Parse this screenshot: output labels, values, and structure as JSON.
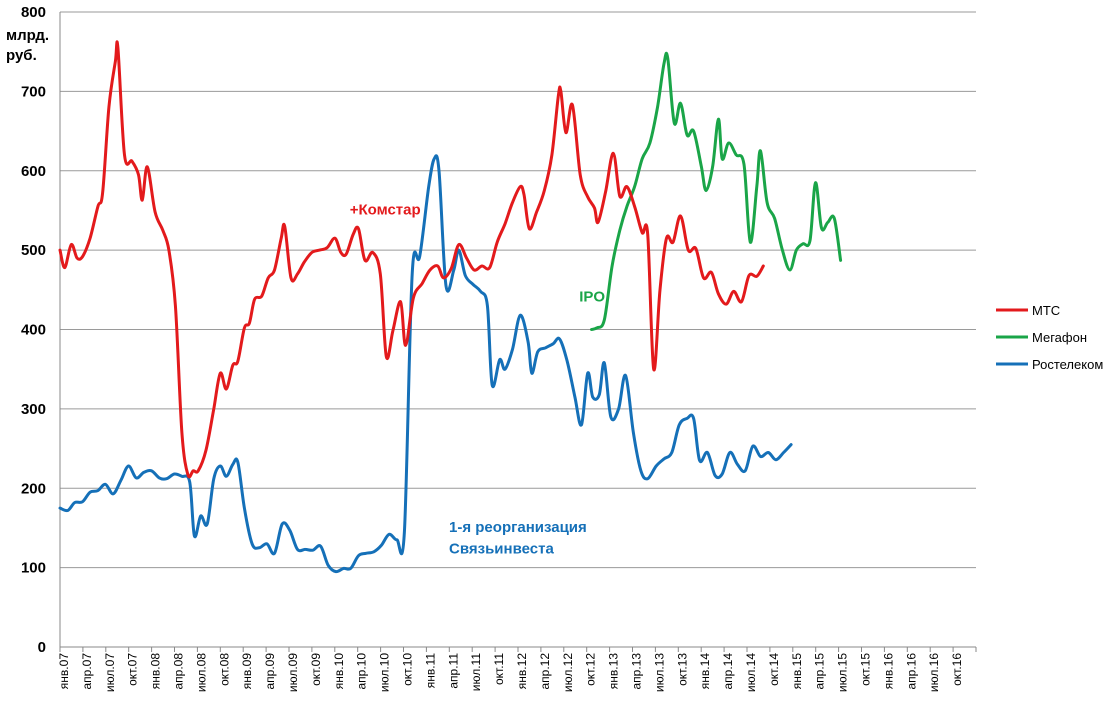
{
  "chart_data": {
    "type": "line",
    "ylim": [
      0,
      800
    ],
    "yticks": [
      0,
      100,
      200,
      300,
      400,
      500,
      600,
      700,
      800
    ],
    "yunit_lines": [
      "млрд.",
      "руб."
    ],
    "grid": "horizontal",
    "legend_position": "right",
    "x_ticks": [
      "янв.07",
      "апр.07",
      "июл.07",
      "окт.07",
      "янв.08",
      "апр.08",
      "июл.08",
      "окт.08",
      "янв.09",
      "апр.09",
      "июл.09",
      "окт.09",
      "янв.10",
      "апр.10",
      "июл.10",
      "окт.10",
      "янв.11",
      "апр.11",
      "июл.11",
      "окт.11",
      "янв.12",
      "апр.12",
      "июл.12",
      "окт.12",
      "янв.13",
      "апр.13",
      "июл.13",
      "окт.13",
      "янв.14",
      "апр.14",
      "июл.14",
      "окт.14",
      "янв.15",
      "апр.15",
      "июл.15",
      "окт.15",
      "янв.16",
      "апр.16",
      "июл.16",
      "окт.16"
    ],
    "annotations": [
      {
        "text": "+Комстар",
        "color": "#e31a1c",
        "x": "2010-03",
        "y": 545
      },
      {
        "text": "IPO",
        "color": "#1aa548",
        "x": "2012-09",
        "y": 435
      },
      {
        "text": "1-я реорганизация",
        "color": "#1570b8",
        "x": "2011-04",
        "y": 145
      },
      {
        "text": "Связьинвеста",
        "color": "#1570b8",
        "x": "2011-04",
        "y": 118
      }
    ],
    "series": [
      {
        "name": "МТС",
        "color": "#e31a1c",
        "points": [
          [
            "2007-01-01",
            500
          ],
          [
            "2007-01-20",
            478
          ],
          [
            "2007-02-15",
            507
          ],
          [
            "2007-03-10",
            490
          ],
          [
            "2007-04-01",
            492
          ],
          [
            "2007-05-01",
            515
          ],
          [
            "2007-06-01",
            555
          ],
          [
            "2007-06-20",
            572
          ],
          [
            "2007-07-15",
            680
          ],
          [
            "2007-08-10",
            738
          ],
          [
            "2007-08-20",
            755
          ],
          [
            "2007-09-15",
            620
          ],
          [
            "2007-10-15",
            612
          ],
          [
            "2007-11-10",
            595
          ],
          [
            "2007-11-25",
            563
          ],
          [
            "2007-12-15",
            605
          ],
          [
            "2008-01-15",
            548
          ],
          [
            "2008-02-15",
            525
          ],
          [
            "2008-03-10",
            500
          ],
          [
            "2008-04-05",
            430
          ],
          [
            "2008-05-01",
            270
          ],
          [
            "2008-05-25",
            217
          ],
          [
            "2008-06-15",
            222
          ],
          [
            "2008-07-05",
            222
          ],
          [
            "2008-08-05",
            248
          ],
          [
            "2008-09-05",
            300
          ],
          [
            "2008-10-01",
            345
          ],
          [
            "2008-10-25",
            325
          ],
          [
            "2008-11-20",
            355
          ],
          [
            "2008-12-10",
            360
          ],
          [
            "2009-01-05",
            402
          ],
          [
            "2009-01-25",
            408
          ],
          [
            "2009-02-15",
            438
          ],
          [
            "2009-03-15",
            442
          ],
          [
            "2009-04-10",
            465
          ],
          [
            "2009-05-05",
            475
          ],
          [
            "2009-06-01",
            515
          ],
          [
            "2009-06-15",
            530
          ],
          [
            "2009-07-10",
            465
          ],
          [
            "2009-08-05",
            470
          ],
          [
            "2009-09-01",
            485
          ],
          [
            "2009-10-01",
            497
          ],
          [
            "2009-11-01",
            500
          ],
          [
            "2009-12-01",
            503
          ],
          [
            "2010-01-01",
            515
          ],
          [
            "2010-01-25",
            497
          ],
          [
            "2010-02-15",
            495
          ],
          [
            "2010-03-15",
            520
          ],
          [
            "2010-04-05",
            527
          ],
          [
            "2010-05-01",
            487
          ],
          [
            "2010-06-01",
            497
          ],
          [
            "2010-07-01",
            470
          ],
          [
            "2010-07-25",
            366
          ],
          [
            "2010-08-20",
            398
          ],
          [
            "2010-09-20",
            435
          ],
          [
            "2010-10-10",
            380
          ],
          [
            "2010-11-10",
            440
          ],
          [
            "2010-12-15",
            458
          ],
          [
            "2011-01-15",
            475
          ],
          [
            "2011-02-15",
            480
          ],
          [
            "2011-03-10",
            465
          ],
          [
            "2011-04-10",
            477
          ],
          [
            "2011-05-10",
            507
          ],
          [
            "2011-06-10",
            490
          ],
          [
            "2011-07-10",
            475
          ],
          [
            "2011-08-10",
            480
          ],
          [
            "2011-09-10",
            478
          ],
          [
            "2011-10-10",
            510
          ],
          [
            "2011-11-10",
            533
          ],
          [
            "2011-12-10",
            560
          ],
          [
            "2012-01-10",
            580
          ],
          [
            "2012-01-25",
            570
          ],
          [
            "2012-02-15",
            527
          ],
          [
            "2012-03-15",
            548
          ],
          [
            "2012-04-15",
            575
          ],
          [
            "2012-05-15",
            620
          ],
          [
            "2012-06-10",
            695
          ],
          [
            "2012-06-20",
            700
          ],
          [
            "2012-07-10",
            648
          ],
          [
            "2012-08-05",
            683
          ],
          [
            "2012-09-05",
            595
          ],
          [
            "2012-10-05",
            567
          ],
          [
            "2012-11-01",
            553
          ],
          [
            "2012-11-15",
            535
          ],
          [
            "2012-12-15",
            573
          ],
          [
            "2013-01-15",
            622
          ],
          [
            "2013-02-10",
            568
          ],
          [
            "2013-03-10",
            580
          ],
          [
            "2013-04-10",
            555
          ],
          [
            "2013-05-10",
            522
          ],
          [
            "2013-06-01",
            520
          ],
          [
            "2013-06-25",
            350
          ],
          [
            "2013-07-20",
            450
          ],
          [
            "2013-08-15",
            515
          ],
          [
            "2013-09-10",
            510
          ],
          [
            "2013-10-10",
            543
          ],
          [
            "2013-11-10",
            500
          ],
          [
            "2013-12-10",
            502
          ],
          [
            "2014-01-10",
            465
          ],
          [
            "2014-02-10",
            472
          ],
          [
            "2014-03-10",
            445
          ],
          [
            "2014-04-10",
            432
          ],
          [
            "2014-05-10",
            448
          ],
          [
            "2014-06-10",
            435
          ],
          [
            "2014-07-10",
            468
          ],
          [
            "2014-08-10",
            467
          ],
          [
            "2014-09-05",
            480
          ]
        ]
      },
      {
        "name": "Мегафон",
        "color": "#1aa548",
        "points": [
          [
            "2012-10-20",
            400
          ],
          [
            "2012-11-10",
            402
          ],
          [
            "2012-12-10",
            412
          ],
          [
            "2013-01-10",
            480
          ],
          [
            "2013-02-10",
            525
          ],
          [
            "2013-03-10",
            555
          ],
          [
            "2013-04-10",
            580
          ],
          [
            "2013-05-10",
            615
          ],
          [
            "2013-06-10",
            635
          ],
          [
            "2013-07-10",
            680
          ],
          [
            "2013-08-05",
            735
          ],
          [
            "2013-08-20",
            742
          ],
          [
            "2013-09-15",
            660
          ],
          [
            "2013-10-10",
            685
          ],
          [
            "2013-11-05",
            645
          ],
          [
            "2013-12-01",
            650
          ],
          [
            "2014-01-01",
            605
          ],
          [
            "2014-01-20",
            575
          ],
          [
            "2014-02-15",
            605
          ],
          [
            "2014-03-10",
            665
          ],
          [
            "2014-03-25",
            615
          ],
          [
            "2014-04-20",
            635
          ],
          [
            "2014-05-20",
            620
          ],
          [
            "2014-06-20",
            608
          ],
          [
            "2014-07-15",
            510
          ],
          [
            "2014-08-10",
            580
          ],
          [
            "2014-08-25",
            625
          ],
          [
            "2014-09-20",
            560
          ],
          [
            "2014-10-20",
            540
          ],
          [
            "2014-11-20",
            500
          ],
          [
            "2014-12-20",
            475
          ],
          [
            "2015-01-15",
            500
          ],
          [
            "2015-02-10",
            508
          ],
          [
            "2015-03-10",
            512
          ],
          [
            "2015-04-01",
            585
          ],
          [
            "2015-04-25",
            528
          ],
          [
            "2015-05-20",
            535
          ],
          [
            "2015-06-15",
            540
          ],
          [
            "2015-07-10",
            487
          ]
        ]
      },
      {
        "name": "Ростелеком",
        "color": "#1570b8",
        "points": [
          [
            "2007-01-01",
            175
          ],
          [
            "2007-02-01",
            172
          ],
          [
            "2007-03-01",
            182
          ],
          [
            "2007-04-01",
            183
          ],
          [
            "2007-05-01",
            195
          ],
          [
            "2007-06-01",
            197
          ],
          [
            "2007-07-01",
            205
          ],
          [
            "2007-08-01",
            193
          ],
          [
            "2007-09-01",
            210
          ],
          [
            "2007-10-01",
            228
          ],
          [
            "2007-11-01",
            213
          ],
          [
            "2007-12-01",
            220
          ],
          [
            "2008-01-01",
            222
          ],
          [
            "2008-02-01",
            213
          ],
          [
            "2008-03-01",
            212
          ],
          [
            "2008-04-01",
            218
          ],
          [
            "2008-05-01",
            215
          ],
          [
            "2008-06-01",
            208
          ],
          [
            "2008-06-20",
            140
          ],
          [
            "2008-07-15",
            165
          ],
          [
            "2008-08-10",
            155
          ],
          [
            "2008-09-05",
            212
          ],
          [
            "2008-10-01",
            228
          ],
          [
            "2008-10-25",
            215
          ],
          [
            "2008-11-20",
            230
          ],
          [
            "2008-12-10",
            233
          ],
          [
            "2009-01-05",
            175
          ],
          [
            "2009-02-05",
            130
          ],
          [
            "2009-03-05",
            125
          ],
          [
            "2009-04-05",
            130
          ],
          [
            "2009-05-05",
            118
          ],
          [
            "2009-06-05",
            155
          ],
          [
            "2009-07-05",
            147
          ],
          [
            "2009-08-05",
            123
          ],
          [
            "2009-09-05",
            123
          ],
          [
            "2009-10-05",
            122
          ],
          [
            "2009-11-05",
            127
          ],
          [
            "2009-12-05",
            103
          ],
          [
            "2010-01-05",
            95
          ],
          [
            "2010-02-05",
            99
          ],
          [
            "2010-03-05",
            99
          ],
          [
            "2010-04-05",
            115
          ],
          [
            "2010-05-05",
            118
          ],
          [
            "2010-06-05",
            120
          ],
          [
            "2010-07-05",
            128
          ],
          [
            "2010-08-05",
            142
          ],
          [
            "2010-09-05",
            135
          ],
          [
            "2010-10-05",
            145
          ],
          [
            "2010-11-05",
            470
          ],
          [
            "2010-12-05",
            492
          ],
          [
            "2011-01-10",
            580
          ],
          [
            "2011-02-01",
            615
          ],
          [
            "2011-02-20",
            600
          ],
          [
            "2011-03-20",
            455
          ],
          [
            "2011-04-20",
            475
          ],
          [
            "2011-05-10",
            500
          ],
          [
            "2011-06-05",
            468
          ],
          [
            "2011-07-05",
            457
          ],
          [
            "2011-08-05",
            448
          ],
          [
            "2011-09-01",
            430
          ],
          [
            "2011-09-20",
            330
          ],
          [
            "2011-10-20",
            362
          ],
          [
            "2011-11-10",
            350
          ],
          [
            "2011-12-10",
            375
          ],
          [
            "2012-01-10",
            418
          ],
          [
            "2012-02-10",
            385
          ],
          [
            "2012-02-25",
            345
          ],
          [
            "2012-03-20",
            372
          ],
          [
            "2012-04-20",
            377
          ],
          [
            "2012-05-20",
            382
          ],
          [
            "2012-06-15",
            388
          ],
          [
            "2012-07-15",
            360
          ],
          [
            "2012-08-15",
            315
          ],
          [
            "2012-09-10",
            280
          ],
          [
            "2012-10-05",
            345
          ],
          [
            "2012-10-25",
            315
          ],
          [
            "2012-11-20",
            318
          ],
          [
            "2012-12-10",
            358
          ],
          [
            "2013-01-05",
            290
          ],
          [
            "2013-02-05",
            300
          ],
          [
            "2013-03-05",
            342
          ],
          [
            "2013-04-05",
            270
          ],
          [
            "2013-05-05",
            222
          ],
          [
            "2013-06-01",
            212
          ],
          [
            "2013-07-05",
            228
          ],
          [
            "2013-08-05",
            237
          ],
          [
            "2013-09-05",
            245
          ],
          [
            "2013-10-05",
            280
          ],
          [
            "2013-11-05",
            288
          ],
          [
            "2013-12-01",
            288
          ],
          [
            "2013-12-25",
            235
          ],
          [
            "2014-01-25",
            245
          ],
          [
            "2014-02-25",
            216
          ],
          [
            "2014-03-25",
            218
          ],
          [
            "2014-04-25",
            245
          ],
          [
            "2014-05-25",
            230
          ],
          [
            "2014-06-25",
            222
          ],
          [
            "2014-07-25",
            253
          ],
          [
            "2014-08-25",
            240
          ],
          [
            "2014-09-25",
            245
          ],
          [
            "2014-10-25",
            236
          ],
          [
            "2014-11-25",
            245
          ],
          [
            "2014-12-25",
            255
          ]
        ]
      }
    ]
  }
}
